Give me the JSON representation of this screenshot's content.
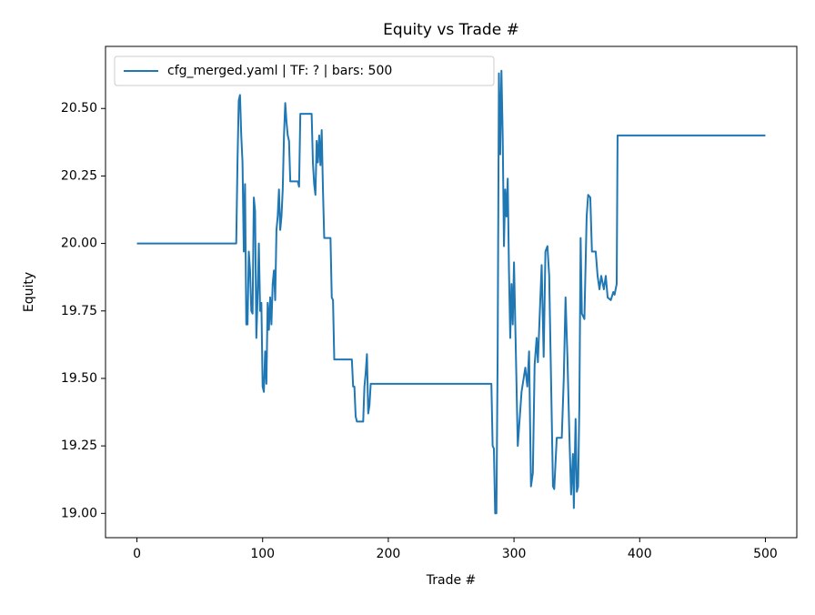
{
  "chart_data": {
    "type": "line",
    "title": "Equity vs Trade #",
    "xlabel": "Trade #",
    "ylabel": "Equity",
    "x": [
      0,
      79,
      80,
      81,
      82,
      83,
      84,
      85,
      86,
      87,
      88,
      89,
      90,
      91,
      92,
      93,
      94,
      95,
      96,
      97,
      98,
      99,
      100,
      101,
      102,
      103,
      104,
      105,
      106,
      107,
      108,
      109,
      110,
      111,
      112,
      113,
      114,
      115,
      116,
      117,
      118,
      119,
      120,
      121,
      122,
      128,
      129,
      130,
      139,
      140,
      141,
      142,
      143,
      144,
      145,
      146,
      147,
      148,
      149,
      154,
      155,
      156,
      157,
      171,
      172,
      173,
      174,
      175,
      180,
      181,
      182,
      183,
      184,
      185,
      186,
      282,
      283,
      284,
      285,
      286,
      287,
      288,
      289,
      290,
      291,
      292,
      293,
      294,
      295,
      296,
      297,
      298,
      299,
      300,
      303,
      306,
      309,
      310.6,
      312,
      313.5,
      315,
      316.4,
      318,
      319,
      322,
      323.6,
      325,
      326.6,
      328,
      331,
      332,
      334,
      338,
      339.6,
      341,
      342.5,
      344,
      345.4,
      346.9,
      347.6,
      349,
      350,
      351,
      352,
      353,
      354,
      356,
      357.8,
      359,
      360.7,
      362,
      365,
      366.5,
      368,
      369.4,
      371.5,
      373,
      374.5,
      377,
      379,
      380,
      381.7,
      382.4,
      500
    ],
    "series": [
      {
        "name": "cfg_merged.yaml | TF: ? | bars: 500",
        "color": "#1f77b4",
        "values": [
          20.0,
          20.0,
          20.3,
          20.53,
          20.55,
          20.4,
          20.3,
          19.97,
          20.22,
          19.7,
          19.7,
          19.97,
          19.9,
          19.75,
          19.74,
          20.17,
          20.12,
          19.65,
          19.8,
          20.0,
          19.75,
          19.78,
          19.47,
          19.45,
          19.6,
          19.48,
          19.78,
          19.68,
          19.8,
          19.7,
          19.85,
          19.9,
          19.79,
          20.05,
          20.1,
          20.2,
          20.05,
          20.1,
          20.2,
          20.4,
          20.52,
          20.45,
          20.4,
          20.38,
          20.23,
          20.23,
          20.21,
          20.48,
          20.48,
          20.3,
          20.22,
          20.18,
          20.38,
          20.3,
          20.4,
          20.29,
          20.42,
          20.2,
          20.02,
          20.02,
          19.8,
          19.79,
          19.57,
          19.57,
          19.47,
          19.47,
          19.36,
          19.34,
          19.34,
          19.47,
          19.52,
          19.59,
          19.37,
          19.4,
          19.48,
          19.48,
          19.25,
          19.24,
          19.0,
          19.0,
          19.6,
          20.63,
          20.33,
          20.64,
          20.4,
          19.99,
          20.2,
          20.1,
          20.24,
          19.9,
          19.65,
          19.85,
          19.7,
          19.93,
          19.25,
          19.45,
          19.54,
          19.47,
          19.6,
          19.1,
          19.15,
          19.55,
          19.65,
          19.56,
          19.92,
          19.58,
          19.97,
          19.99,
          19.88,
          19.1,
          19.09,
          19.28,
          19.28,
          19.5,
          19.8,
          19.58,
          19.3,
          19.07,
          19.22,
          19.02,
          19.35,
          19.08,
          19.1,
          19.4,
          20.02,
          19.74,
          19.72,
          20.1,
          20.18,
          20.17,
          19.97,
          19.97,
          19.88,
          19.83,
          19.88,
          19.83,
          19.88,
          19.8,
          19.79,
          19.82,
          19.81,
          19.85,
          20.4,
          20.4
        ]
      }
    ],
    "xlim": [
      -25,
      525
    ],
    "ylim": [
      18.91,
      20.73
    ],
    "xticks": [
      0,
      100,
      200,
      300,
      400,
      500
    ],
    "yticks": [
      {
        "value": 19,
        "label": "19.00"
      },
      {
        "value": 19.25,
        "label": "19.25"
      },
      {
        "value": 19.5,
        "label": "19.50"
      },
      {
        "value": 19.75,
        "label": "19.75"
      },
      {
        "value": 20,
        "label": "20.00"
      },
      {
        "value": 20.25,
        "label": "20.25"
      },
      {
        "value": 20.5,
        "label": "20.50"
      }
    ],
    "legend": "upper left"
  }
}
